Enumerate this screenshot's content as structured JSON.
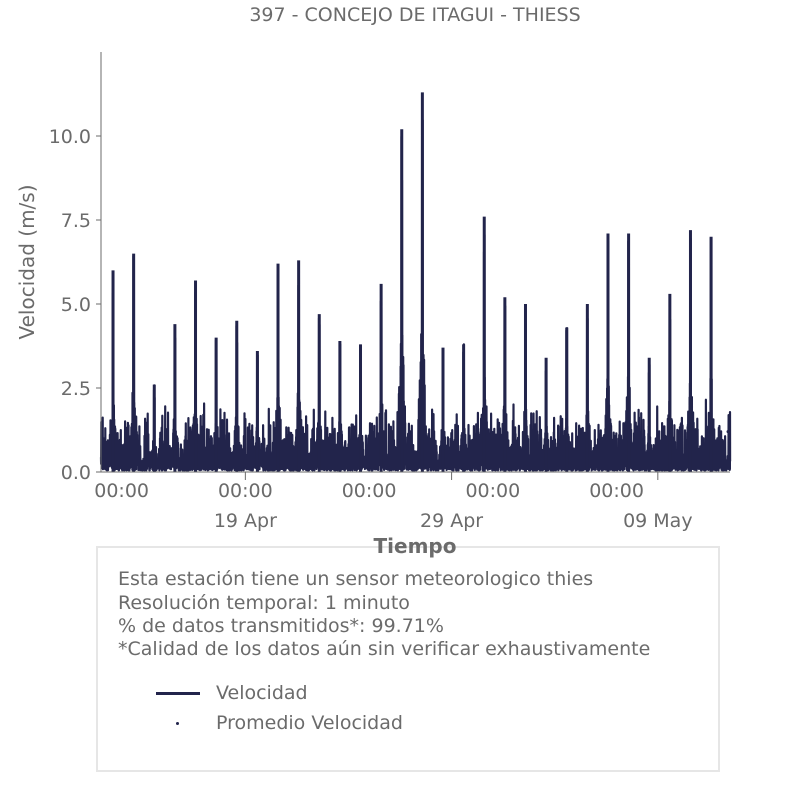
{
  "chart_data": {
    "type": "line",
    "title": "397 - CONCEJO DE ITAGUI - THIESS",
    "xlabel": "Tiempo",
    "ylabel": "Velocidad (m/s)",
    "x_range": [
      "2024-04-12T00:00",
      "2024-05-12T12:00"
    ],
    "ylim": [
      0,
      12.5
    ],
    "y_ticks": [
      0.0,
      2.5,
      5.0,
      7.5,
      10.0
    ],
    "y_tick_labels": [
      "0.0",
      "2.5",
      "5.0",
      "7.5",
      "10.0"
    ],
    "x_ticks": [
      {
        "x": "2024-04-13T00:00",
        "label": "00:00"
      },
      {
        "x": "2024-04-19T00:00",
        "label": "00:00"
      },
      {
        "x": "2024-04-25T00:00",
        "label": "00:00"
      },
      {
        "x": "2024-05-01T00:00",
        "label": "00:00"
      },
      {
        "x": "2024-05-07T00:00",
        "label": "00:00"
      }
    ],
    "x_major_ticks": [
      {
        "x": "2024-04-19T00:00",
        "label": "19 Apr"
      },
      {
        "x": "2024-04-29T00:00",
        "label": "29 Apr"
      },
      {
        "x": "2024-05-09T00:00",
        "label": "09 May"
      }
    ],
    "grid": false,
    "legend_position": "bottom-box",
    "series": [
      {
        "name": "Velocidad",
        "style": "line",
        "color": "#22244b",
        "daily_peaks": [
          {
            "x": "2024-04-12T14:00",
            "y": 6.0
          },
          {
            "x": "2024-04-13T14:00",
            "y": 6.5
          },
          {
            "x": "2024-04-14T14:00",
            "y": 2.6
          },
          {
            "x": "2024-04-15T14:00",
            "y": 4.4
          },
          {
            "x": "2024-04-16T14:00",
            "y": 5.7
          },
          {
            "x": "2024-04-17T14:00",
            "y": 4.0
          },
          {
            "x": "2024-04-18T14:00",
            "y": 4.5
          },
          {
            "x": "2024-04-19T14:00",
            "y": 3.6
          },
          {
            "x": "2024-04-20T14:00",
            "y": 6.2
          },
          {
            "x": "2024-04-21T14:00",
            "y": 6.3
          },
          {
            "x": "2024-04-22T14:00",
            "y": 4.7
          },
          {
            "x": "2024-04-23T14:00",
            "y": 3.9
          },
          {
            "x": "2024-04-24T14:00",
            "y": 3.8
          },
          {
            "x": "2024-04-25T14:00",
            "y": 5.6
          },
          {
            "x": "2024-04-26T14:00",
            "y": 10.2
          },
          {
            "x": "2024-04-27T14:00",
            "y": 11.3
          },
          {
            "x": "2024-04-28T14:00",
            "y": 3.7
          },
          {
            "x": "2024-04-29T14:00",
            "y": 3.8
          },
          {
            "x": "2024-04-30T14:00",
            "y": 7.6
          },
          {
            "x": "2024-05-01T14:00",
            "y": 5.2
          },
          {
            "x": "2024-05-02T14:00",
            "y": 5.0
          },
          {
            "x": "2024-05-03T14:00",
            "y": 3.4
          },
          {
            "x": "2024-05-04T14:00",
            "y": 4.3
          },
          {
            "x": "2024-05-05T14:00",
            "y": 5.0
          },
          {
            "x": "2024-05-06T14:00",
            "y": 7.1
          },
          {
            "x": "2024-05-07T14:00",
            "y": 7.1
          },
          {
            "x": "2024-05-08T14:00",
            "y": 3.4
          },
          {
            "x": "2024-05-09T14:00",
            "y": 5.3
          },
          {
            "x": "2024-05-10T14:00",
            "y": 7.2
          },
          {
            "x": "2024-05-11T14:00",
            "y": 7.0
          }
        ]
      },
      {
        "name": "Promedio Velocidad",
        "style": "points",
        "color": "#22244b"
      }
    ]
  },
  "info_box": {
    "line1": "Esta estación tiene un sensor meteorologico thies",
    "line2": "Resolución temporal: 1 minuto",
    "line3": "% de datos transmitidos*: 99.71%",
    "line4": "*Calidad de los datos aún sin verificar exhaustivamente"
  }
}
